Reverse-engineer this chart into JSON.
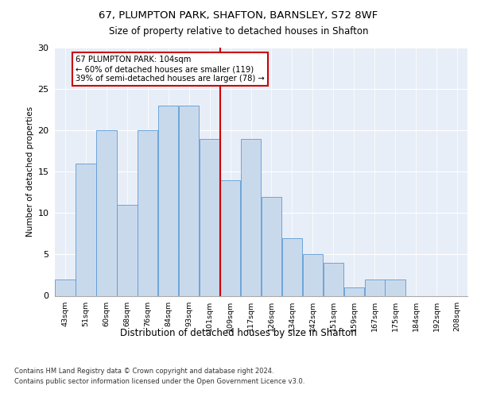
{
  "title1": "67, PLUMPTON PARK, SHAFTON, BARNSLEY, S72 8WF",
  "title2": "Size of property relative to detached houses in Shafton",
  "xlabel": "Distribution of detached houses by size in Shafton",
  "ylabel": "Number of detached properties",
  "categories": [
    "43sqm",
    "51sqm",
    "60sqm",
    "68sqm",
    "76sqm",
    "84sqm",
    "93sqm",
    "101sqm",
    "109sqm",
    "117sqm",
    "126sqm",
    "134sqm",
    "142sqm",
    "151sqm",
    "159sqm",
    "167sqm",
    "175sqm",
    "184sqm",
    "192sqm",
    "208sqm"
  ],
  "values": [
    2,
    16,
    20,
    11,
    20,
    23,
    23,
    19,
    14,
    19,
    12,
    7,
    5,
    4,
    1,
    2,
    2,
    0,
    0,
    0
  ],
  "bar_color": "#c9d9ec",
  "bar_edgecolor": "#5b9bd5",
  "vline_x_index": 7,
  "vline_color": "#cc0000",
  "annotation_text": "67 PLUMPTON PARK: 104sqm\n← 60% of detached houses are smaller (119)\n39% of semi-detached houses are larger (78) →",
  "annotation_box_edgecolor": "#cc0000",
  "ylim": [
    0,
    30
  ],
  "yticks": [
    0,
    5,
    10,
    15,
    20,
    25,
    30
  ],
  "footer1": "Contains HM Land Registry data © Crown copyright and database right 2024.",
  "footer2": "Contains public sector information licensed under the Open Government Licence v3.0.",
  "background_color": "#e8eef7",
  "bin_starts": [
    43,
    51,
    60,
    68,
    76,
    84,
    93,
    101,
    109,
    117,
    126,
    134,
    142,
    151,
    159,
    167,
    175,
    184,
    192,
    208
  ]
}
